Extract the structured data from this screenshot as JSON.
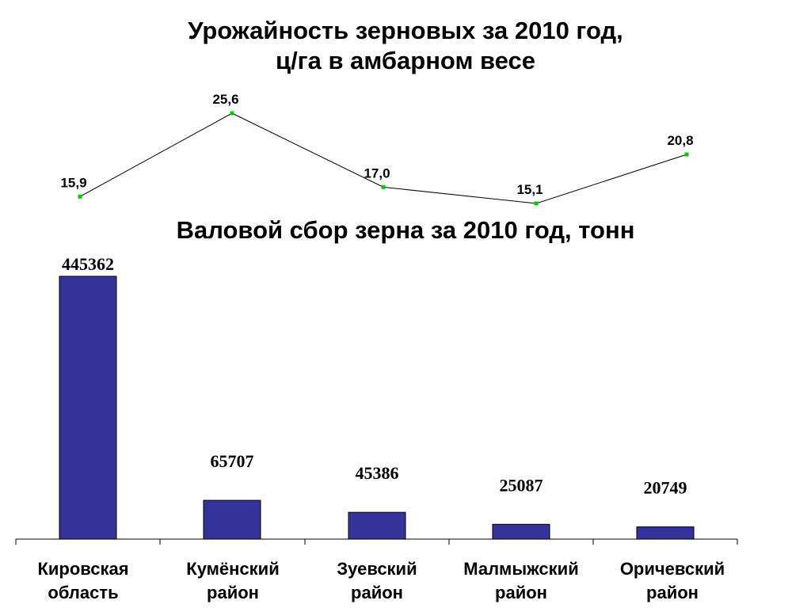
{
  "chart_data": [
    {
      "type": "line",
      "title": "Урожайность зерновых за 2010 год,",
      "subtitle": "ц/га в амбарном весе",
      "categories": [
        "Кировская область",
        "Кумёнский район",
        "Зуевский район",
        "Малмыжский район",
        "Оричевский район"
      ],
      "values": [
        15.9,
        25.6,
        17.0,
        15.1,
        20.8
      ],
      "data_labels": [
        "15,9",
        "25,6",
        "17,0",
        "15,1",
        "20,8"
      ],
      "ylim": [
        15.1,
        25.6
      ],
      "grid": false,
      "line_color": "#000000",
      "marker_color": "#00cc00"
    },
    {
      "type": "bar",
      "title": "Валовой сбор зерна за 2010 год, тонн",
      "categories": [
        "Кировская область",
        "Кумёнский район",
        "Зуевский район",
        "Малмыжский район",
        "Оричевский район"
      ],
      "category_lines": [
        [
          "Кировская",
          "область"
        ],
        [
          "Кумёнский",
          "район"
        ],
        [
          "Зуевский",
          "район"
        ],
        [
          "Малмыжский",
          "район"
        ],
        [
          "Оричевский",
          "район"
        ]
      ],
      "values": [
        445362,
        65707,
        45386,
        25087,
        20749
      ],
      "data_labels": [
        "445362",
        "65707",
        "45386",
        "25087",
        "20749"
      ],
      "ylim": [
        0,
        445362
      ],
      "grid": false,
      "bar_color": "#333399"
    }
  ]
}
